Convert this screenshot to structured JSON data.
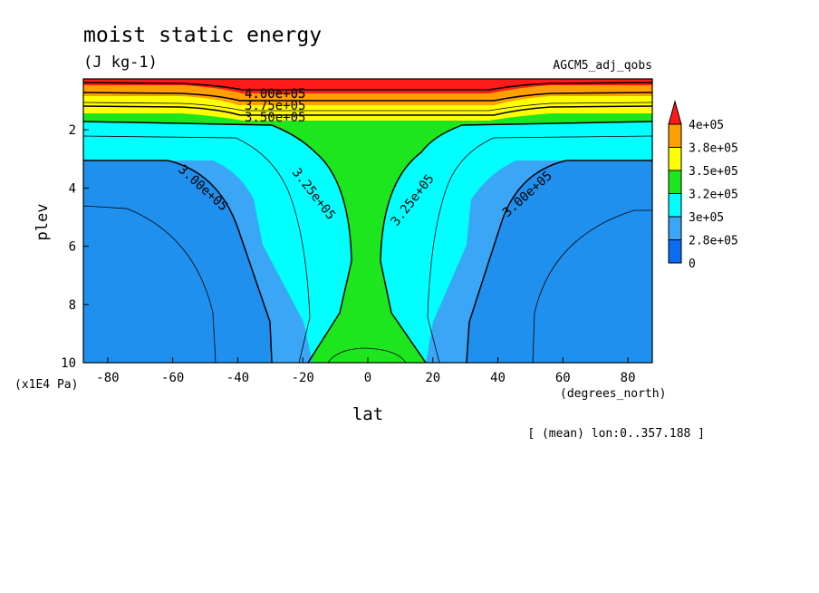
{
  "chart_data": {
    "type": "heatmap",
    "title": "moist static energy",
    "units": "(J kg-1)",
    "dataset": "AGCM5_adj_qobs",
    "xlabel": "lat",
    "x_units": "(degrees_north)",
    "ylabel": "plev",
    "y_units": "(x1E4 Pa)",
    "averaging_note": "[ (mean) lon:0..357.188 ]",
    "xlim": [
      -87.5,
      87.5
    ],
    "ylim": [
      10,
      0.25
    ],
    "x_ticks": [
      -80,
      -60,
      -40,
      -20,
      0,
      20,
      40,
      60,
      80
    ],
    "x_tick_labels": [
      "-80",
      "-60",
      "-40",
      "-20",
      "0",
      "20",
      "40",
      "60",
      "80"
    ],
    "y_ticks": [
      2,
      4,
      6,
      8,
      10
    ],
    "y_tick_labels": [
      "2",
      "4",
      "6",
      "8",
      "10"
    ],
    "colorbar": {
      "position": "right",
      "labels": [
        "0",
        "2.8e+05",
        "3e+05",
        "3.2e+05",
        "3.5e+05",
        "3.8e+05",
        "4e+05"
      ],
      "levels": [
        0,
        280000,
        300000,
        320000,
        350000,
        380000,
        400000
      ],
      "colors": [
        "#0a6cf0",
        "#3aa6f5",
        "#00ffff",
        "#1ee61e",
        "#ffff00",
        "#ffa000",
        "#ff1a1a"
      ],
      "extend": "max"
    },
    "contour_labels": [
      {
        "text": "4.00e+05",
        "lat": 0,
        "plev": 0.55
      },
      {
        "text": "3.75e+05",
        "lat": 0,
        "plev": 0.9
      },
      {
        "text": "3.50e+05",
        "lat": 0,
        "plev": 1.45
      },
      {
        "text": "3.25e+05",
        "lat": -18,
        "plev": 4.25
      },
      {
        "text": "3.25e+05",
        "lat": 18,
        "plev": 4.25
      },
      {
        "text": "3.00e+05",
        "lat": -54,
        "plev": 4
      },
      {
        "text": "3.00e+05",
        "lat": 57,
        "plev": 4
      }
    ],
    "bands_bottom_to_top": [
      {
        "from": 280000,
        "to": 300000,
        "color": "#3aa6f5",
        "region": "subtropics-to-poles, lower troposphere"
      },
      {
        "from": 300000,
        "to": 320000,
        "color": "#00ffff",
        "region": "transition band"
      },
      {
        "from": 320000,
        "to": 350000,
        "color": "#1ee61e",
        "region": "tropics and upper troposphere"
      },
      {
        "from": 350000,
        "to": 380000,
        "color": "#ffff00",
        "region": "upper levels"
      },
      {
        "from": 380000,
        "to": 400000,
        "color": "#ffa000",
        "region": "near top"
      },
      {
        "from": 400000,
        "to": 410000,
        "color": "#ff1a1a",
        "region": "top"
      }
    ]
  }
}
